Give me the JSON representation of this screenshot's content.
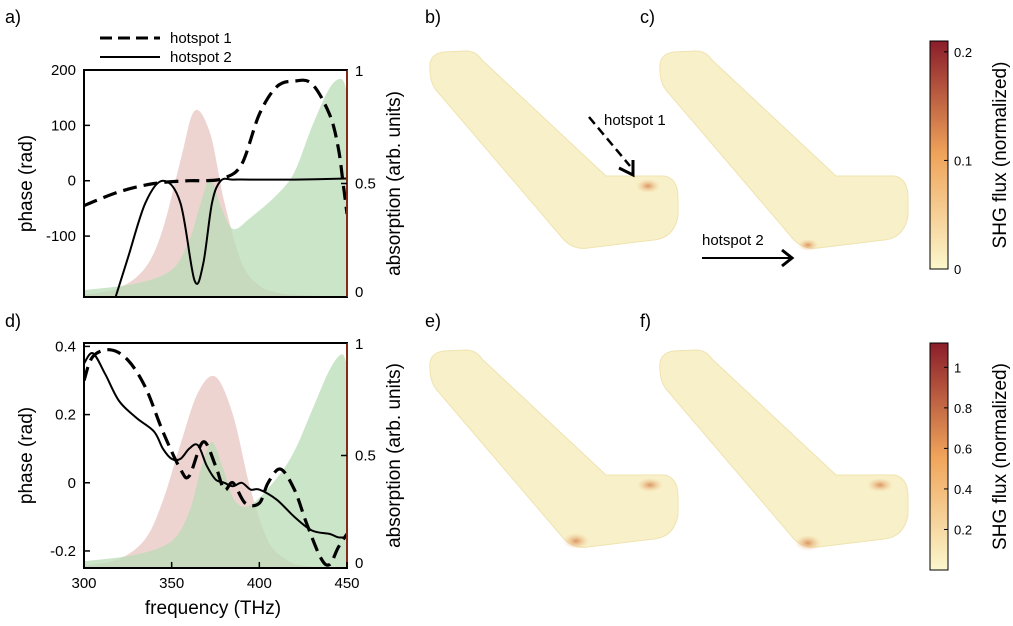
{
  "panels": {
    "a": "a)",
    "b": "b)",
    "c": "c)",
    "d": "d)",
    "e": "e)",
    "f": "f)"
  },
  "legend": {
    "hotspot1": "hotspot 1",
    "hotspot2": "hotspot 2"
  },
  "annotations": {
    "hotspot1": "hotspot 1",
    "hotspot2": "hotspot 2"
  },
  "colors": {
    "red_fill": "#e8c6c1",
    "green_fill": "#b9dcb7",
    "overlap_fill": "#c6c1a3",
    "cmap_low": "#fbf7cc",
    "cmap_mid": "#f0a45a",
    "cmap_high": "#8a1d2a",
    "nanoantenna": "#f8f0c8"
  },
  "colorbars": [
    {
      "label": "SHG flux (normalized)",
      "ticks": [
        "0.2",
        "0.1",
        "0"
      ],
      "tick_values": [
        0.2,
        0.1,
        0
      ],
      "range": [
        0,
        0.21
      ]
    },
    {
      "label": "SHG flux (normalized)",
      "ticks": [
        "1",
        "0.8",
        "0.6",
        "0.4",
        "0.2"
      ],
      "tick_values": [
        1,
        0.8,
        0.6,
        0.4,
        0.2
      ],
      "range": [
        0,
        1.12
      ]
    }
  ],
  "chart_data": [
    {
      "type": "line",
      "panel": "a)",
      "xlabel": "",
      "ylabel": "phase (rad)",
      "y2label": "absorption (arb. units)",
      "xlim": [
        300,
        450
      ],
      "ylim": [
        -210,
        200
      ],
      "y2lim": [
        0,
        1
      ],
      "yticks": [
        "200",
        "100",
        "0",
        "-100"
      ],
      "yticks_values": [
        200,
        100,
        0,
        -100
      ],
      "y2ticks": [
        "1",
        "0.5",
        "0"
      ],
      "y2ticks_values": [
        1,
        0.5,
        0
      ],
      "series": [
        {
          "name": "hotspot 1",
          "style": "dashed",
          "axis": "left",
          "x": [
            300,
            320,
            340,
            360,
            370,
            380,
            390,
            400,
            410,
            420,
            430,
            440,
            445,
            448,
            450
          ],
          "y": [
            -45,
            -20,
            -5,
            0,
            0,
            5,
            30,
            120,
            170,
            180,
            175,
            120,
            60,
            -10,
            -60
          ]
        },
        {
          "name": "hotspot 2",
          "style": "solid",
          "axis": "left",
          "x": [
            318,
            325,
            335,
            345,
            355,
            363,
            368,
            373,
            378,
            385,
            395,
            420,
            450
          ],
          "y": [
            -210,
            -140,
            -40,
            0,
            -40,
            -180,
            -150,
            -40,
            0,
            2,
            2,
            2,
            4
          ]
        },
        {
          "name": "",
          "style": "fill",
          "color": "#e8c6c1",
          "axis": "right",
          "x": [
            300,
            320,
            335,
            345,
            355,
            363,
            372,
            380,
            390,
            400,
            410,
            420,
            450
          ],
          "y": [
            0.01,
            0.04,
            0.13,
            0.3,
            0.6,
            0.82,
            0.72,
            0.42,
            0.15,
            0.05,
            0.02,
            0.01,
            0.0
          ]
        },
        {
          "name": "",
          "style": "fill",
          "color": "#b9dcb7",
          "axis": "right",
          "x": [
            300,
            330,
            350,
            360,
            366,
            372,
            378,
            385,
            395,
            410,
            420,
            430,
            440,
            447,
            450
          ],
          "y": [
            0.03,
            0.06,
            0.12,
            0.25,
            0.4,
            0.52,
            0.4,
            0.3,
            0.35,
            0.45,
            0.55,
            0.75,
            0.92,
            0.96,
            0.9
          ]
        }
      ]
    },
    {
      "type": "line",
      "panel": "d)",
      "xlabel": "frequency (THz)",
      "ylabel": "phase (rad)",
      "y2label": "absorption (arb. units)",
      "xlim": [
        300,
        450
      ],
      "ylim": [
        -0.25,
        0.41
      ],
      "y2lim": [
        0,
        1
      ],
      "xticks": [
        "300",
        "350",
        "400",
        "450"
      ],
      "xticks_values": [
        300,
        350,
        400,
        450
      ],
      "yticks": [
        "0.4",
        "0.2",
        "0",
        "-0.2"
      ],
      "yticks_values": [
        0.4,
        0.2,
        0,
        -0.2
      ],
      "y2ticks": [
        "1",
        "0.5",
        "0"
      ],
      "y2ticks_values": [
        1,
        0.5,
        0
      ],
      "series": [
        {
          "name": "hotspot 1",
          "style": "dashed",
          "axis": "left",
          "x": [
            300,
            305,
            315,
            325,
            335,
            345,
            355,
            360,
            368,
            375,
            380,
            385,
            392,
            400,
            405,
            412,
            420,
            427,
            435,
            440,
            445,
            450
          ],
          "y": [
            0.3,
            0.37,
            0.39,
            0.36,
            0.28,
            0.15,
            0.04,
            0.02,
            0.12,
            0.05,
            -0.02,
            0.0,
            -0.06,
            -0.06,
            0.0,
            0.04,
            -0.02,
            -0.12,
            -0.22,
            -0.24,
            -0.19,
            -0.15
          ]
        },
        {
          "name": "hotspot 2",
          "style": "solid",
          "axis": "left",
          "x": [
            300,
            305,
            312,
            320,
            330,
            340,
            345,
            350,
            355,
            360,
            365,
            370,
            375,
            380,
            385,
            390,
            395,
            400,
            410,
            420,
            430,
            440,
            445,
            450
          ],
          "y": [
            0.35,
            0.38,
            0.32,
            0.24,
            0.19,
            0.15,
            0.1,
            0.07,
            0.07,
            0.1,
            0.11,
            0.05,
            0.01,
            0.0,
            -0.01,
            0.0,
            -0.02,
            -0.02,
            -0.05,
            -0.1,
            -0.14,
            -0.15,
            -0.16,
            -0.16
          ]
        },
        {
          "name": "",
          "style": "fill",
          "color": "#e8c6c1",
          "axis": "right",
          "x": [
            300,
            320,
            335,
            345,
            355,
            365,
            375,
            385,
            395,
            405,
            415,
            425,
            450
          ],
          "y": [
            0.01,
            0.04,
            0.13,
            0.3,
            0.55,
            0.78,
            0.85,
            0.68,
            0.35,
            0.12,
            0.04,
            0.01,
            0.0
          ]
        },
        {
          "name": "",
          "style": "fill",
          "color": "#b9dcb7",
          "axis": "right",
          "x": [
            300,
            330,
            350,
            360,
            367,
            373,
            379,
            386,
            395,
            410,
            420,
            430,
            440,
            447,
            450
          ],
          "y": [
            0.03,
            0.06,
            0.12,
            0.25,
            0.45,
            0.56,
            0.45,
            0.3,
            0.28,
            0.4,
            0.52,
            0.7,
            0.88,
            0.95,
            0.9
          ]
        }
      ]
    }
  ]
}
